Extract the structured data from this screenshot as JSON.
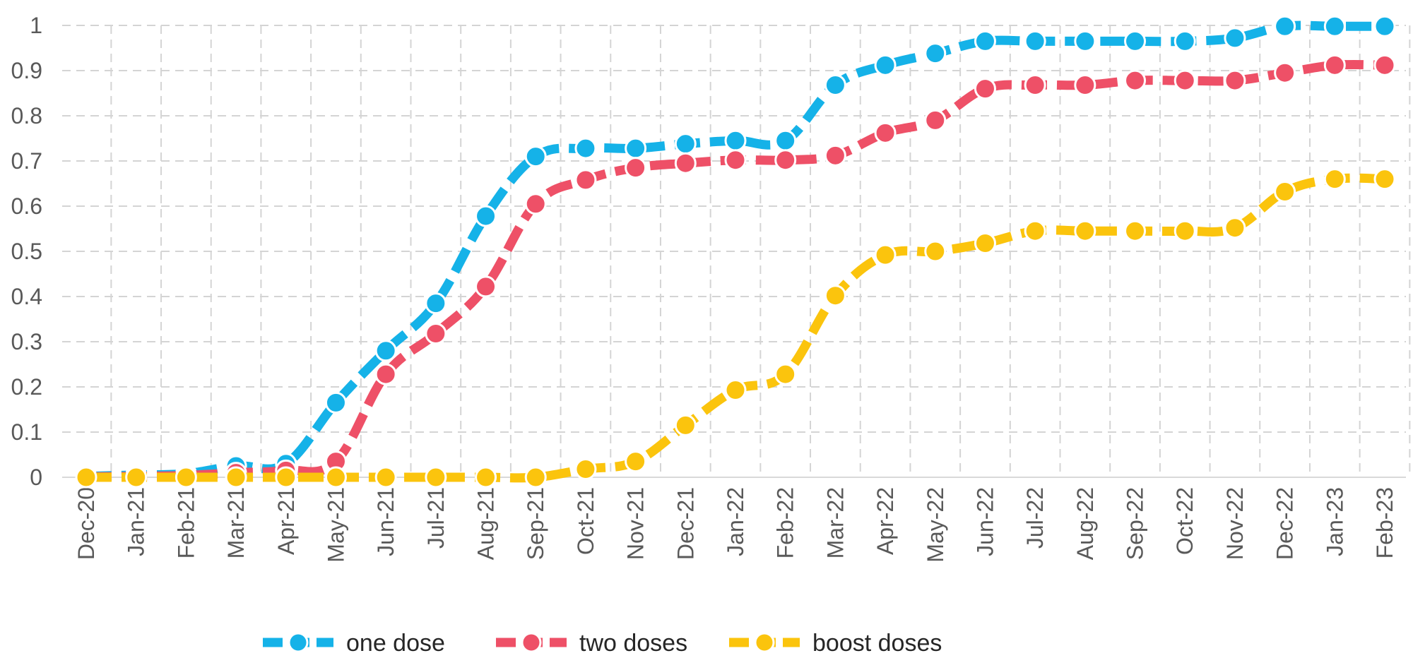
{
  "chart_data": {
    "type": "line",
    "title": "",
    "xlabel": "",
    "ylabel": "",
    "categories": [
      "Dec-20",
      "Jan-21",
      "Feb-21",
      "Mar-21",
      "Apr-21",
      "May-21",
      "Jun-21",
      "Jul-21",
      "Aug-21",
      "Sep-21",
      "Oct-21",
      "Nov-21",
      "Dec-21",
      "Jan-22",
      "Feb-22",
      "Mar-22",
      "Apr-22",
      "May-22",
      "Jun-22",
      "Jul-22",
      "Aug-22",
      "Sep-22",
      "Oct-22",
      "Nov-22",
      "Dec-22",
      "Jan-23",
      "Feb-23"
    ],
    "ylim": [
      0,
      1
    ],
    "yticks": [
      0,
      0.1,
      0.2,
      0.3,
      0.4,
      0.5,
      0.6,
      0.7,
      0.8,
      0.9,
      1
    ],
    "ytick_labels": [
      "0",
      "0.1",
      "0.2",
      "0.3",
      "0.4",
      "0.5",
      "0.6",
      "0.7",
      "0.8",
      "0.9",
      "1"
    ],
    "grid": true,
    "legend_position": "bottom-center",
    "series": [
      {
        "name": "one dose",
        "color": "#15b2e8",
        "values": [
          0.002,
          0.005,
          0.008,
          0.025,
          0.03,
          0.165,
          0.28,
          0.385,
          0.578,
          0.71,
          0.728,
          0.728,
          0.738,
          0.745,
          0.745,
          0.868,
          0.912,
          0.938,
          0.965,
          0.965,
          0.965,
          0.965,
          0.965,
          0.972,
          0.998,
          0.998,
          0.998
        ]
      },
      {
        "name": "two doses",
        "color": "#ee5067",
        "values": [
          0.001,
          0.002,
          0.004,
          0.01,
          0.015,
          0.035,
          0.228,
          0.318,
          0.422,
          0.605,
          0.658,
          0.685,
          0.695,
          0.702,
          0.702,
          0.712,
          0.762,
          0.79,
          0.86,
          0.868,
          0.868,
          0.878,
          0.878,
          0.878,
          0.895,
          0.912,
          0.912
        ]
      },
      {
        "name": "boost doses",
        "color": "#fbc40d",
        "values": [
          0.0,
          0.0,
          0.0,
          0.0,
          0.0,
          0.0,
          0.0,
          0.0,
          0.0,
          0.0,
          0.018,
          0.035,
          0.115,
          0.193,
          0.228,
          0.402,
          0.492,
          0.5,
          0.518,
          0.545,
          0.545,
          0.545,
          0.545,
          0.552,
          0.632,
          0.66,
          0.66
        ]
      }
    ]
  }
}
